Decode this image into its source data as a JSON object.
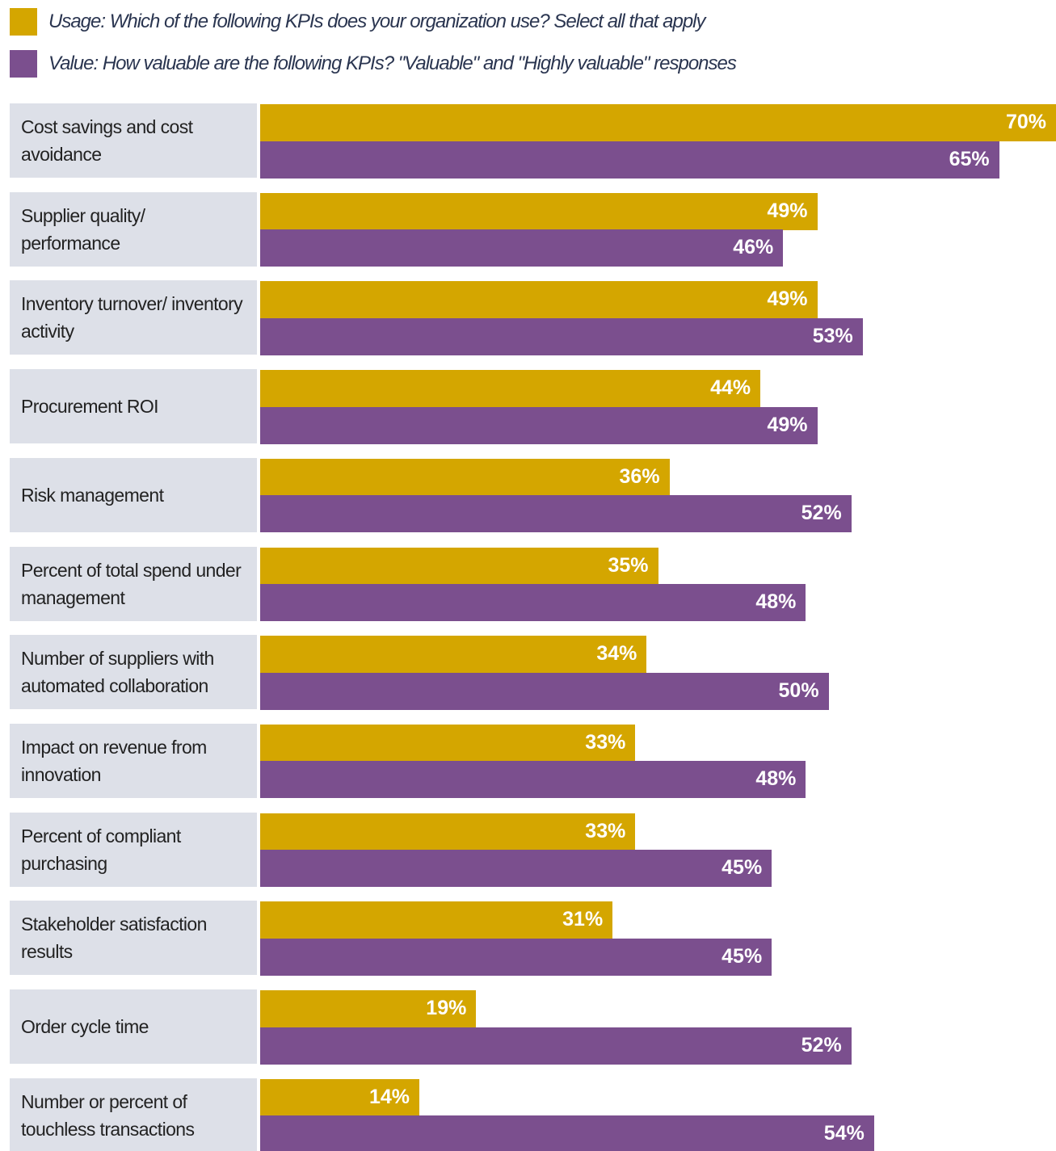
{
  "chart_data": {
    "type": "bar",
    "orientation": "horizontal",
    "categories": [
      "Cost savings and cost avoidance",
      "Supplier quality/ performance",
      "Inventory turnover/ inventory activity",
      "Procurement ROI",
      "Risk management",
      "Percent of total spend under management",
      "Number of suppliers with automated collaboration",
      "Impact on revenue from innovation",
      "Percent of compliant purchasing",
      "Stakeholder satisfaction results",
      "Order cycle time",
      "Number or percent of touchless transactions"
    ],
    "series": [
      {
        "name": "Usage: Which of the following KPIs does your organization use? Select all that apply",
        "color": "#d4a600",
        "values": [
          70,
          49,
          49,
          44,
          36,
          35,
          34,
          33,
          33,
          31,
          19,
          14
        ],
        "value_labels": [
          "70%",
          "49%",
          "49%",
          "44%",
          "36%",
          "35%",
          "34%",
          "33%",
          "33%",
          "31%",
          "19%",
          "14%"
        ]
      },
      {
        "name": "Value: How valuable are the following KPIs? \"Valuable\" and \"Highly valuable\" responses",
        "color": "#7b4f8e",
        "values": [
          65,
          46,
          53,
          49,
          52,
          48,
          50,
          48,
          45,
          45,
          52,
          54
        ],
        "value_labels": [
          "65%",
          "46%",
          "53%",
          "49%",
          "52%",
          "48%",
          "50%",
          "48%",
          "45%",
          "45%",
          "52%",
          "54%"
        ]
      }
    ]
  }
}
